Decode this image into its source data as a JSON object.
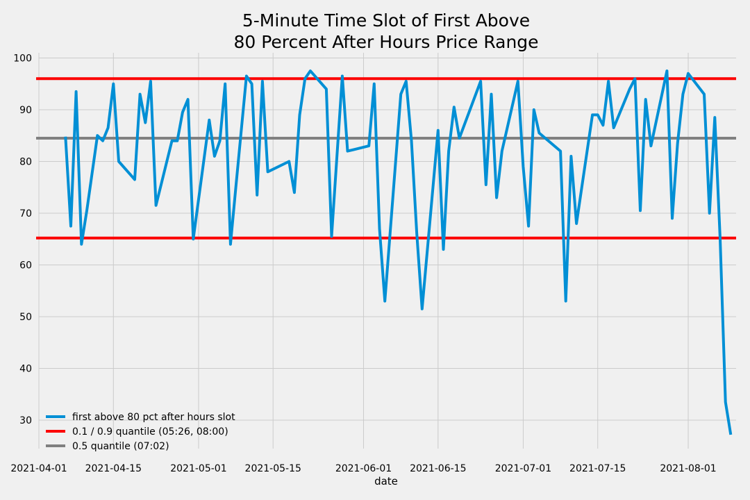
{
  "chart_data": {
    "type": "line",
    "title": [
      "5-Minute Time Slot of First Above",
      "80 Percent After Hours Price Range"
    ],
    "xlabel": "date",
    "ylabel": "",
    "xlim": [
      "2021-04-01",
      "2021-08-10"
    ],
    "ylim": [
      24.5,
      101
    ],
    "grid": true,
    "legend_position": "lower-left",
    "xticks": [
      "2021-04-01",
      "2021-04-15",
      "2021-05-01",
      "2021-05-15",
      "2021-06-01",
      "2021-06-15",
      "2021-07-01",
      "2021-07-15",
      "2021-08-01"
    ],
    "yticks": [
      30,
      40,
      50,
      60,
      70,
      80,
      90,
      100
    ],
    "series": [
      {
        "name": "first above 80 pct after hours slot",
        "color": "#008fd5",
        "points": [
          [
            "2021-04-06",
            84.8
          ],
          [
            "2021-04-07",
            67.5
          ],
          [
            "2021-04-08",
            93.5
          ],
          [
            "2021-04-09",
            64.0
          ],
          [
            "2021-04-10",
            70.5
          ],
          [
            "2021-04-12",
            85.0
          ],
          [
            "2021-04-13",
            84.0
          ],
          [
            "2021-04-14",
            86.5
          ],
          [
            "2021-04-15",
            95.0
          ],
          [
            "2021-04-16",
            80.0
          ],
          [
            "2021-04-19",
            76.5
          ],
          [
            "2021-04-20",
            93.0
          ],
          [
            "2021-04-21",
            87.5
          ],
          [
            "2021-04-22",
            95.5
          ],
          [
            "2021-04-23",
            71.5
          ],
          [
            "2021-04-26",
            84.0
          ],
          [
            "2021-04-27",
            84.0
          ],
          [
            "2021-04-28",
            89.5
          ],
          [
            "2021-04-29",
            92.0
          ],
          [
            "2021-04-30",
            65.0
          ],
          [
            "2021-05-03",
            88.0
          ],
          [
            "2021-05-04",
            81.0
          ],
          [
            "2021-05-05",
            84.0
          ],
          [
            "2021-05-06",
            95.0
          ],
          [
            "2021-05-07",
            64.0
          ],
          [
            "2021-05-08",
            75.0
          ],
          [
            "2021-05-10",
            96.5
          ],
          [
            "2021-05-11",
            95.0
          ],
          [
            "2021-05-12",
            73.5
          ],
          [
            "2021-05-13",
            95.5
          ],
          [
            "2021-05-14",
            78.0
          ],
          [
            "2021-05-18",
            80.0
          ],
          [
            "2021-05-19",
            74.0
          ],
          [
            "2021-05-20",
            89.0
          ],
          [
            "2021-05-21",
            96.0
          ],
          [
            "2021-05-22",
            97.5
          ],
          [
            "2021-05-25",
            94.0
          ],
          [
            "2021-05-26",
            65.5
          ],
          [
            "2021-05-28",
            96.5
          ],
          [
            "2021-05-29",
            82.0
          ],
          [
            "2021-06-02",
            83.0
          ],
          [
            "2021-06-03",
            95.0
          ],
          [
            "2021-06-04",
            67.0
          ],
          [
            "2021-06-05",
            53.0
          ],
          [
            "2021-06-08",
            93.0
          ],
          [
            "2021-06-09",
            95.5
          ],
          [
            "2021-06-10",
            84.0
          ],
          [
            "2021-06-11",
            66.0
          ],
          [
            "2021-06-12",
            51.5
          ],
          [
            "2021-06-15",
            86.0
          ],
          [
            "2021-06-16",
            63.0
          ],
          [
            "2021-06-17",
            82.0
          ],
          [
            "2021-06-18",
            90.5
          ],
          [
            "2021-06-19",
            84.5
          ],
          [
            "2021-06-23",
            95.5
          ],
          [
            "2021-06-24",
            75.5
          ],
          [
            "2021-06-25",
            93.0
          ],
          [
            "2021-06-26",
            73.0
          ],
          [
            "2021-06-27",
            82.0
          ],
          [
            "2021-06-30",
            95.5
          ],
          [
            "2021-07-01",
            79.0
          ],
          [
            "2021-07-02",
            67.5
          ],
          [
            "2021-07-03",
            90.0
          ],
          [
            "2021-07-04",
            85.5
          ],
          [
            "2021-07-08",
            82.0
          ],
          [
            "2021-07-09",
            53.0
          ],
          [
            "2021-07-10",
            81.0
          ],
          [
            "2021-07-11",
            68.0
          ],
          [
            "2021-07-14",
            89.0
          ],
          [
            "2021-07-15",
            89.0
          ],
          [
            "2021-07-16",
            87.0
          ],
          [
            "2021-07-17",
            95.5
          ],
          [
            "2021-07-18",
            86.5
          ],
          [
            "2021-07-21",
            94.0
          ],
          [
            "2021-07-22",
            96.0
          ],
          [
            "2021-07-23",
            70.5
          ],
          [
            "2021-07-24",
            92.0
          ],
          [
            "2021-07-25",
            83.0
          ],
          [
            "2021-07-28",
            97.5
          ],
          [
            "2021-07-29",
            69.0
          ],
          [
            "2021-07-30",
            83.5
          ],
          [
            "2021-07-31",
            93.0
          ],
          [
            "2021-08-01",
            97.0
          ],
          [
            "2021-08-04",
            93.0
          ],
          [
            "2021-08-05",
            70.0
          ],
          [
            "2021-08-06",
            88.5
          ],
          [
            "2021-08-07",
            65.0
          ],
          [
            "2021-08-08",
            33.5
          ],
          [
            "2021-08-09",
            27.2
          ]
        ]
      },
      {
        "name": "0.1 / 0.9 quantile (05:26, 08:00)",
        "color": "#fc0000",
        "hlines": [
          65.2,
          96.0
        ]
      },
      {
        "name": "0.5 quantile (07:02)",
        "color": "#808080",
        "hlines": [
          84.5
        ]
      }
    ]
  }
}
